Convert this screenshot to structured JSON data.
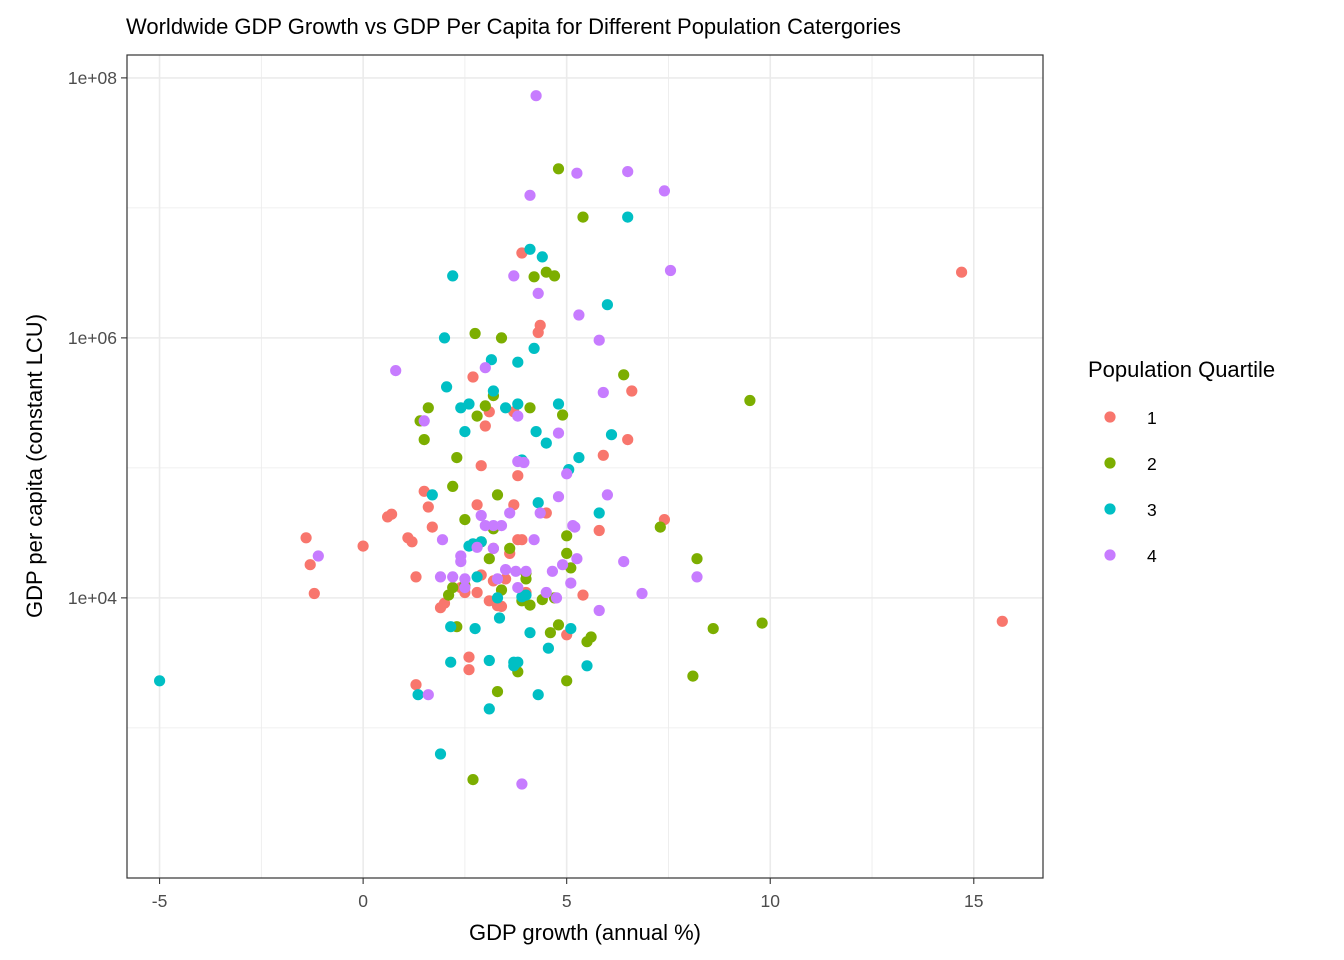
{
  "chart_data": {
    "type": "scatter",
    "title": "Worldwide GDP Growth vs GDP Per Capita for Different Population Catergories",
    "xlabel": "GDP growth (annual %)",
    "ylabel": "GDP per capita (constant LCU)",
    "xlim": [
      -5.8,
      16.7
    ],
    "ylim": [
      70,
      150000000
    ],
    "y_scale": "log10",
    "x_ticks": [
      -5,
      0,
      5,
      10,
      15
    ],
    "x_tick_labels": [
      "-5",
      "0",
      "5",
      "10",
      "15"
    ],
    "y_ticks": [
      10000,
      1000000,
      100000000
    ],
    "y_tick_labels": [
      "1e+04",
      "1e+06",
      "1e+08"
    ],
    "grid": true,
    "legend": {
      "title": "Population Quartile",
      "position": "right"
    },
    "series": [
      {
        "name": "1",
        "color": "#F8766D",
        "points": [
          [
            -1.4,
            29000
          ],
          [
            -1.3,
            18000
          ],
          [
            -1.2,
            10800
          ],
          [
            0.0,
            25000
          ],
          [
            0.6,
            42000
          ],
          [
            0.7,
            44000
          ],
          [
            1.1,
            29000
          ],
          [
            1.2,
            27000
          ],
          [
            1.3,
            14500
          ],
          [
            1.5,
            66000
          ],
          [
            1.6,
            50000
          ],
          [
            1.7,
            35000
          ],
          [
            1.9,
            8400
          ],
          [
            2.0,
            9100
          ],
          [
            1.3,
            2150
          ],
          [
            2.4,
            12000
          ],
          [
            2.5,
            11000
          ],
          [
            2.6,
            3500
          ],
          [
            2.6,
            2800
          ],
          [
            2.7,
            500000
          ],
          [
            2.8,
            11000
          ],
          [
            2.8,
            52000
          ],
          [
            2.9,
            104000
          ],
          [
            2.9,
            15000
          ],
          [
            3.0,
            210000
          ],
          [
            3.1,
            9500
          ],
          [
            3.1,
            270000
          ],
          [
            3.2,
            24000
          ],
          [
            3.2,
            13500
          ],
          [
            3.3,
            8700
          ],
          [
            3.4,
            8600
          ],
          [
            3.5,
            14000
          ],
          [
            3.6,
            22000
          ],
          [
            3.7,
            52000
          ],
          [
            3.7,
            270000
          ],
          [
            3.8,
            87000
          ],
          [
            3.8,
            28000
          ],
          [
            3.9,
            28000
          ],
          [
            3.9,
            4500000
          ],
          [
            4.0,
            11000
          ],
          [
            4.3,
            1100000
          ],
          [
            4.35,
            1250000
          ],
          [
            4.5,
            45000
          ],
          [
            5.0,
            5200
          ],
          [
            5.4,
            10500
          ],
          [
            5.8,
            33000
          ],
          [
            5.9,
            125000
          ],
          [
            6.5,
            165000
          ],
          [
            6.6,
            390000
          ],
          [
            7.4,
            40000
          ],
          [
            14.7,
            3200000
          ],
          [
            15.7,
            6600
          ]
        ]
      },
      {
        "name": "2",
        "color": "#7CAE00",
        "points": [
          [
            1.4,
            230000
          ],
          [
            1.5,
            165000
          ],
          [
            1.6,
            290000
          ],
          [
            2.1,
            10500
          ],
          [
            2.2,
            12000
          ],
          [
            2.2,
            72000
          ],
          [
            2.3,
            6000
          ],
          [
            2.3,
            120000
          ],
          [
            2.5,
            40000
          ],
          [
            2.5,
            12500
          ],
          [
            2.7,
            400
          ],
          [
            2.75,
            1080000
          ],
          [
            2.8,
            250000
          ],
          [
            2.9,
            27000
          ],
          [
            3.0,
            300000
          ],
          [
            3.1,
            20000
          ],
          [
            3.2,
            360000
          ],
          [
            3.2,
            34000
          ],
          [
            3.3,
            1900
          ],
          [
            3.3,
            62000
          ],
          [
            3.4,
            1000000
          ],
          [
            3.4,
            11500
          ],
          [
            3.6,
            24000
          ],
          [
            3.8,
            2700
          ],
          [
            3.9,
            9500
          ],
          [
            4.0,
            15500
          ],
          [
            4.0,
            14000
          ],
          [
            4.1,
            8800
          ],
          [
            4.1,
            290000
          ],
          [
            4.2,
            2950000
          ],
          [
            4.4,
            9700
          ],
          [
            4.5,
            3200000
          ],
          [
            4.6,
            5400
          ],
          [
            4.7,
            10000
          ],
          [
            4.7,
            3000000
          ],
          [
            4.8,
            20000000
          ],
          [
            4.8,
            6200
          ],
          [
            4.9,
            255000
          ],
          [
            5.0,
            30000
          ],
          [
            5.0,
            2300
          ],
          [
            5.0,
            22000
          ],
          [
            5.1,
            17000
          ],
          [
            5.4,
            8500000
          ],
          [
            5.5,
            4600
          ],
          [
            5.6,
            5000
          ],
          [
            6.4,
            520000
          ],
          [
            7.3,
            35000
          ],
          [
            8.1,
            2500
          ],
          [
            8.2,
            20000
          ],
          [
            8.6,
            5800
          ],
          [
            9.5,
            330000
          ],
          [
            9.8,
            6400
          ]
        ]
      },
      {
        "name": "3",
        "color": "#00BFC4",
        "points": [
          [
            -5.0,
            2300
          ],
          [
            1.35,
            1800
          ],
          [
            1.7,
            62000
          ],
          [
            1.9,
            630
          ],
          [
            2.0,
            1000000
          ],
          [
            2.05,
            420000
          ],
          [
            2.15,
            6000
          ],
          [
            2.15,
            3200
          ],
          [
            2.2,
            3000000
          ],
          [
            2.4,
            290000
          ],
          [
            2.5,
            190000
          ],
          [
            2.6,
            310000
          ],
          [
            2.6,
            25000
          ],
          [
            2.7,
            26000
          ],
          [
            2.75,
            5800
          ],
          [
            2.8,
            14500
          ],
          [
            2.9,
            27000
          ],
          [
            3.1,
            3300
          ],
          [
            3.1,
            1400
          ],
          [
            3.15,
            680000
          ],
          [
            3.2,
            390000
          ],
          [
            3.3,
            10000
          ],
          [
            3.35,
            7000
          ],
          [
            3.5,
            290000
          ],
          [
            3.7,
            3200
          ],
          [
            3.7,
            3000
          ],
          [
            3.8,
            3200
          ],
          [
            3.8,
            650000
          ],
          [
            3.8,
            310000
          ],
          [
            3.9,
            115000
          ],
          [
            3.9,
            10200
          ],
          [
            4.0,
            10500
          ],
          [
            4.1,
            5400
          ],
          [
            4.1,
            4800000
          ],
          [
            4.2,
            830000
          ],
          [
            4.25,
            190000
          ],
          [
            4.3,
            1800
          ],
          [
            4.3,
            54000
          ],
          [
            4.4,
            4200000
          ],
          [
            4.5,
            155000
          ],
          [
            4.55,
            4100
          ],
          [
            4.8,
            310000
          ],
          [
            5.05,
            97000
          ],
          [
            5.1,
            5800
          ],
          [
            5.3,
            120000
          ],
          [
            5.5,
            3000
          ],
          [
            5.8,
            45000
          ],
          [
            6.0,
            1800000
          ],
          [
            6.1,
            180000
          ],
          [
            6.5,
            8500000
          ]
        ]
      },
      {
        "name": "4",
        "color": "#C77CFF",
        "points": [
          [
            -1.1,
            21000
          ],
          [
            0.8,
            560000
          ],
          [
            1.5,
            230000
          ],
          [
            1.6,
            1800
          ],
          [
            1.9,
            14500
          ],
          [
            1.95,
            28000
          ],
          [
            2.2,
            14500
          ],
          [
            2.4,
            21000
          ],
          [
            2.4,
            19000
          ],
          [
            2.5,
            14000
          ],
          [
            2.5,
            12000
          ],
          [
            2.8,
            24500
          ],
          [
            2.9,
            43000
          ],
          [
            3.0,
            36000
          ],
          [
            3.0,
            590000
          ],
          [
            3.2,
            24000
          ],
          [
            3.2,
            36000
          ],
          [
            3.3,
            14000
          ],
          [
            3.4,
            36000
          ],
          [
            3.5,
            16500
          ],
          [
            3.6,
            45000
          ],
          [
            3.7,
            3000000
          ],
          [
            3.75,
            16000
          ],
          [
            3.8,
            112000
          ],
          [
            3.8,
            12000
          ],
          [
            3.8,
            250000
          ],
          [
            3.9,
            370
          ],
          [
            3.95,
            110000
          ],
          [
            4.0,
            16000
          ],
          [
            4.1,
            12500000
          ],
          [
            4.2,
            28000
          ],
          [
            4.25,
            73000000
          ],
          [
            4.3,
            2200000
          ],
          [
            4.35,
            45000
          ],
          [
            4.5,
            11000
          ],
          [
            4.65,
            16000
          ],
          [
            4.75,
            10000
          ],
          [
            4.8,
            60000
          ],
          [
            4.8,
            185000
          ],
          [
            4.9,
            18000
          ],
          [
            5.0,
            90000
          ],
          [
            5.1,
            13000
          ],
          [
            5.15,
            36000
          ],
          [
            5.2,
            35000
          ],
          [
            5.25,
            20000
          ],
          [
            5.25,
            18500000
          ],
          [
            5.3,
            1500000
          ],
          [
            5.8,
            8000
          ],
          [
            5.8,
            960000
          ],
          [
            5.9,
            380000
          ],
          [
            6.0,
            62000
          ],
          [
            6.4,
            19000
          ],
          [
            6.5,
            19000000
          ],
          [
            6.85,
            10800
          ],
          [
            7.4,
            13500000
          ],
          [
            7.55,
            3300000
          ],
          [
            8.2,
            14500
          ]
        ]
      }
    ]
  }
}
